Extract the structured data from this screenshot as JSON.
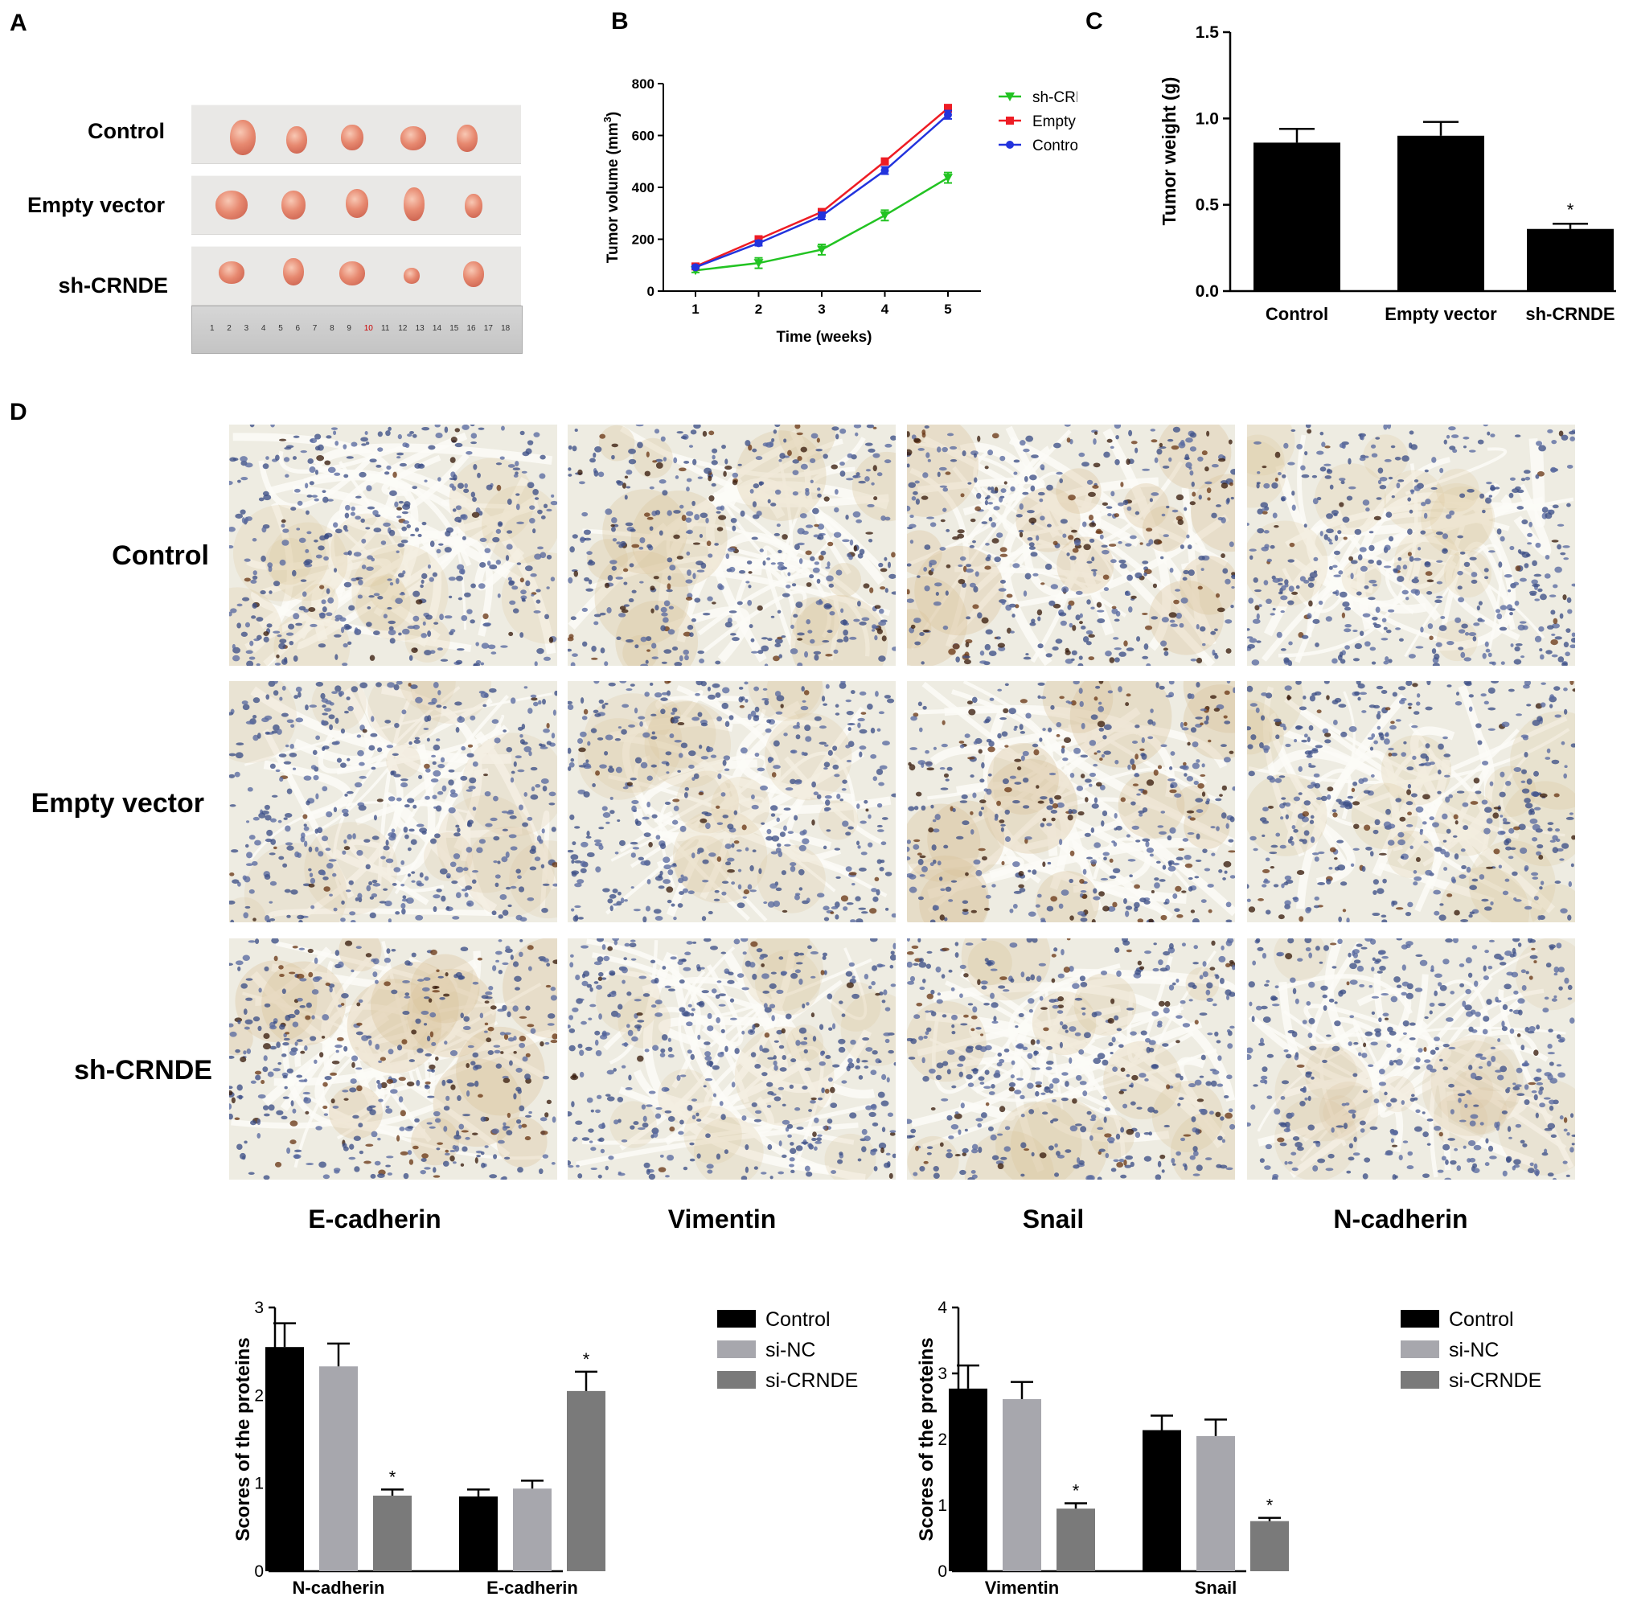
{
  "panels": {
    "a": "A",
    "b": "B",
    "c": "C",
    "d": "D"
  },
  "panel_a": {
    "rows": [
      "Control",
      "Empty vector",
      "sh-CRNDE"
    ],
    "ruler_numbers": [
      "1",
      "2",
      "3",
      "4",
      "5",
      "6",
      "7",
      "8",
      "9",
      "10",
      "11",
      "12",
      "13",
      "14",
      "15",
      "16",
      "17",
      "18"
    ]
  },
  "panel_d": {
    "rows": [
      "Control",
      "Empty vector",
      "sh-CRNDE"
    ],
    "columns": [
      "E-cadherin",
      "Vimentin",
      "Snail",
      "N-cadherin"
    ]
  },
  "colors": {
    "sh_crnde": "#22c322",
    "empty_vector": "#ee1c24",
    "control": "#2233dd",
    "bar_control": "#000000",
    "bar_sinc": "#a7a7ad",
    "bar_sicrnde": "#7a7a7a"
  },
  "chart_data": [
    {
      "id": "B",
      "type": "line",
      "x": [
        1,
        2,
        3,
        4,
        5
      ],
      "xlabel": "Time (weeks)",
      "ylabel_main": "Tumor volume (mm",
      "ylabel_sup": "3",
      "ylabel_end": ")",
      "ylim": [
        0,
        800
      ],
      "yticks": [
        0,
        200,
        400,
        600,
        800
      ],
      "legend": "right",
      "series": [
        {
          "name": "sh-CRNDE",
          "values": [
            80,
            108,
            160,
            292,
            437
          ],
          "err": [
            8,
            20,
            20,
            20,
            20
          ],
          "color": "#22c322",
          "marker": "triangle-down"
        },
        {
          "name": "Empty vector",
          "values": [
            95,
            200,
            305,
            500,
            705
          ],
          "err": [
            6,
            10,
            12,
            12,
            14
          ],
          "color": "#ee1c24",
          "marker": "square"
        },
        {
          "name": "Control",
          "values": [
            92,
            185,
            290,
            465,
            680
          ],
          "err": [
            6,
            10,
            14,
            14,
            16
          ],
          "color": "#2233dd",
          "marker": "circle"
        }
      ]
    },
    {
      "id": "C",
      "type": "bar",
      "categories": [
        "Control",
        "Empty vector",
        "sh-CRNDE"
      ],
      "values": [
        0.86,
        0.9,
        0.36
      ],
      "err": [
        0.08,
        0.08,
        0.03
      ],
      "sig": [
        "",
        "",
        "*"
      ],
      "ylabel": "Tumor weight (g)",
      "ylim": [
        0,
        1.5
      ],
      "yticks": [
        "0.0",
        "0.5",
        "1.0",
        "1.5"
      ]
    },
    {
      "id": "D1",
      "type": "bar",
      "categories": [
        "N-cadherin",
        "E-cadherin"
      ],
      "ylabel": "Scores of the proteins",
      "ylim": [
        0,
        3
      ],
      "yticks": [
        "0",
        "1",
        "2",
        "3"
      ],
      "legend": "right",
      "series": [
        {
          "name": "Control",
          "values": [
            2.55,
            0.85
          ],
          "err": [
            0.27,
            0.08
          ],
          "sig": [
            "",
            ""
          ],
          "color": "#000000"
        },
        {
          "name": "si-NC",
          "values": [
            2.33,
            0.94
          ],
          "err": [
            0.26,
            0.09
          ],
          "sig": [
            "",
            ""
          ],
          "color": "#a7a7ad"
        },
        {
          "name": "si-CRNDE",
          "values": [
            0.86,
            2.05
          ],
          "err": [
            0.07,
            0.22
          ],
          "sig": [
            "*",
            "*"
          ],
          "color": "#7a7a7a"
        }
      ]
    },
    {
      "id": "D2",
      "type": "bar",
      "categories": [
        "Vimentin",
        "Snail"
      ],
      "ylabel": "Scores of the proteins",
      "ylim": [
        0,
        4
      ],
      "yticks": [
        "0",
        "1",
        "2",
        "3",
        "4"
      ],
      "legend": "right",
      "series": [
        {
          "name": "Control",
          "values": [
            2.77,
            2.14
          ],
          "err": [
            0.35,
            0.22
          ],
          "sig": [
            "",
            ""
          ],
          "color": "#000000"
        },
        {
          "name": "si-NC",
          "values": [
            2.61,
            2.05
          ],
          "err": [
            0.26,
            0.25
          ],
          "sig": [
            "",
            ""
          ],
          "color": "#a7a7ad"
        },
        {
          "name": "si-CRNDE",
          "values": [
            0.95,
            0.76
          ],
          "err": [
            0.08,
            0.05
          ],
          "sig": [
            "*",
            "*"
          ],
          "color": "#7a7a7a"
        }
      ]
    }
  ]
}
